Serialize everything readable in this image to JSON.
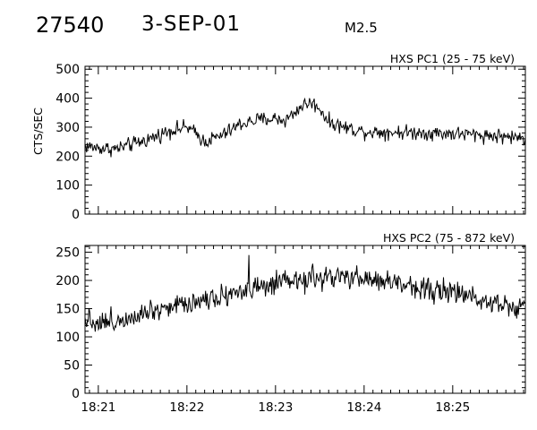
{
  "header": {
    "event_id": "27540",
    "date": "3-SEP-01",
    "flare_class": "M2.5"
  },
  "chart_data": [
    {
      "type": "line",
      "title": "HXS PC1 (25 - 75 keV)",
      "ylabel": "CTS/SEC",
      "xlabel": "",
      "ylim": [
        0,
        510
      ],
      "yticks": [
        0,
        100,
        200,
        300,
        400,
        500
      ],
      "xlim_minutes": [
        20.85,
        25.82
      ],
      "xticks": [
        "18:21",
        "18:22",
        "18:23",
        "18:24",
        "18:25"
      ],
      "show_xtick_labels": false,
      "anchors": [
        [
          "18:20:51",
          235
        ],
        [
          "18:21:00",
          228
        ],
        [
          "18:21:12",
          225
        ],
        [
          "18:21:24",
          242
        ],
        [
          "18:21:36",
          262
        ],
        [
          "18:21:48",
          288
        ],
        [
          "18:22:00",
          300
        ],
        [
          "18:22:06",
          278
        ],
        [
          "18:22:12",
          250
        ],
        [
          "18:22:24",
          272
        ],
        [
          "18:22:36",
          310
        ],
        [
          "18:22:48",
          325
        ],
        [
          "18:23:00",
          330
        ],
        [
          "18:23:06",
          322
        ],
        [
          "18:23:12",
          345
        ],
        [
          "18:23:18",
          375
        ],
        [
          "18:23:24",
          385
        ],
        [
          "18:23:30",
          365
        ],
        [
          "18:23:36",
          318
        ],
        [
          "18:23:48",
          298
        ],
        [
          "18:24:00",
          285
        ],
        [
          "18:24:30",
          282
        ],
        [
          "18:25:00",
          278
        ],
        [
          "18:25:30",
          270
        ],
        [
          "18:25:49",
          262
        ]
      ],
      "noise_amplitude": 22
    },
    {
      "type": "line",
      "title": "HXS PC2 (75 - 872 keV)",
      "ylabel": "",
      "xlabel": "",
      "ylim": [
        0,
        262
      ],
      "yticks": [
        0,
        50,
        100,
        150,
        200,
        250
      ],
      "xlim_minutes": [
        20.85,
        25.82
      ],
      "xticks": [
        "18:21",
        "18:22",
        "18:23",
        "18:24",
        "18:25"
      ],
      "show_xtick_labels": true,
      "anchors": [
        [
          "18:20:51",
          135
        ],
        [
          "18:21:00",
          125
        ],
        [
          "18:21:12",
          128
        ],
        [
          "18:21:30",
          145
        ],
        [
          "18:22:00",
          160
        ],
        [
          "18:22:30",
          178
        ],
        [
          "18:22:48",
          185
        ],
        [
          "18:23:00",
          192
        ],
        [
          "18:23:30",
          205
        ],
        [
          "18:24:00",
          203
        ],
        [
          "18:24:30",
          192
        ],
        [
          "18:25:00",
          178
        ],
        [
          "18:25:30",
          162
        ],
        [
          "18:25:42",
          152
        ],
        [
          "18:25:49",
          162
        ]
      ],
      "noise_amplitude": 18,
      "spikes": [
        [
          "18:22:42",
          245
        ]
      ]
    }
  ]
}
